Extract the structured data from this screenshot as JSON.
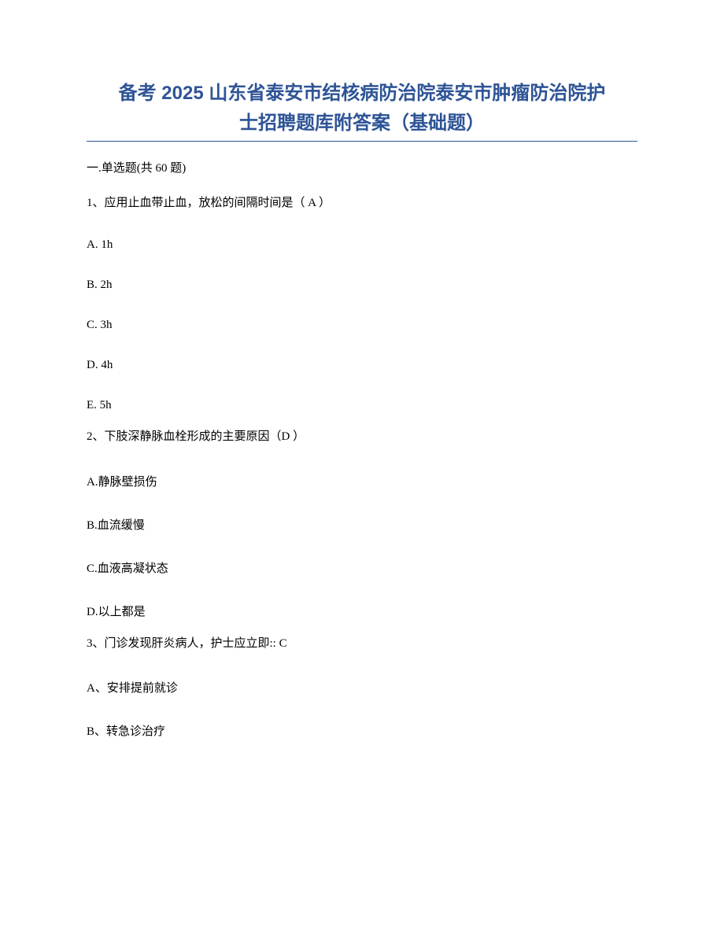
{
  "title_line1": "备考 2025 山东省泰安市结核病防治院泰安市肿瘤防治院护",
  "title_line2": "士招聘题库附答案（基础题）",
  "section_heading": "一.单选题(共 60 题)",
  "questions": [
    {
      "stem": "1、应用止血带止血，放松的间隔时间是（ A ）",
      "options": [
        "A. 1h",
        "B. 2h",
        "C. 3h",
        "D. 4h",
        "E. 5h"
      ]
    },
    {
      "stem": "2、下肢深静脉血栓形成的主要原因（D ）",
      "options": [
        "A.静脉壁损伤",
        "B.血流缓慢",
        "C.血液高凝状态",
        "D.以上都是"
      ]
    },
    {
      "stem": "3、门诊发现肝炎病人，护士应立即:: C",
      "options": [
        "A、安排提前就诊",
        "B、转急诊治疗"
      ]
    }
  ]
}
